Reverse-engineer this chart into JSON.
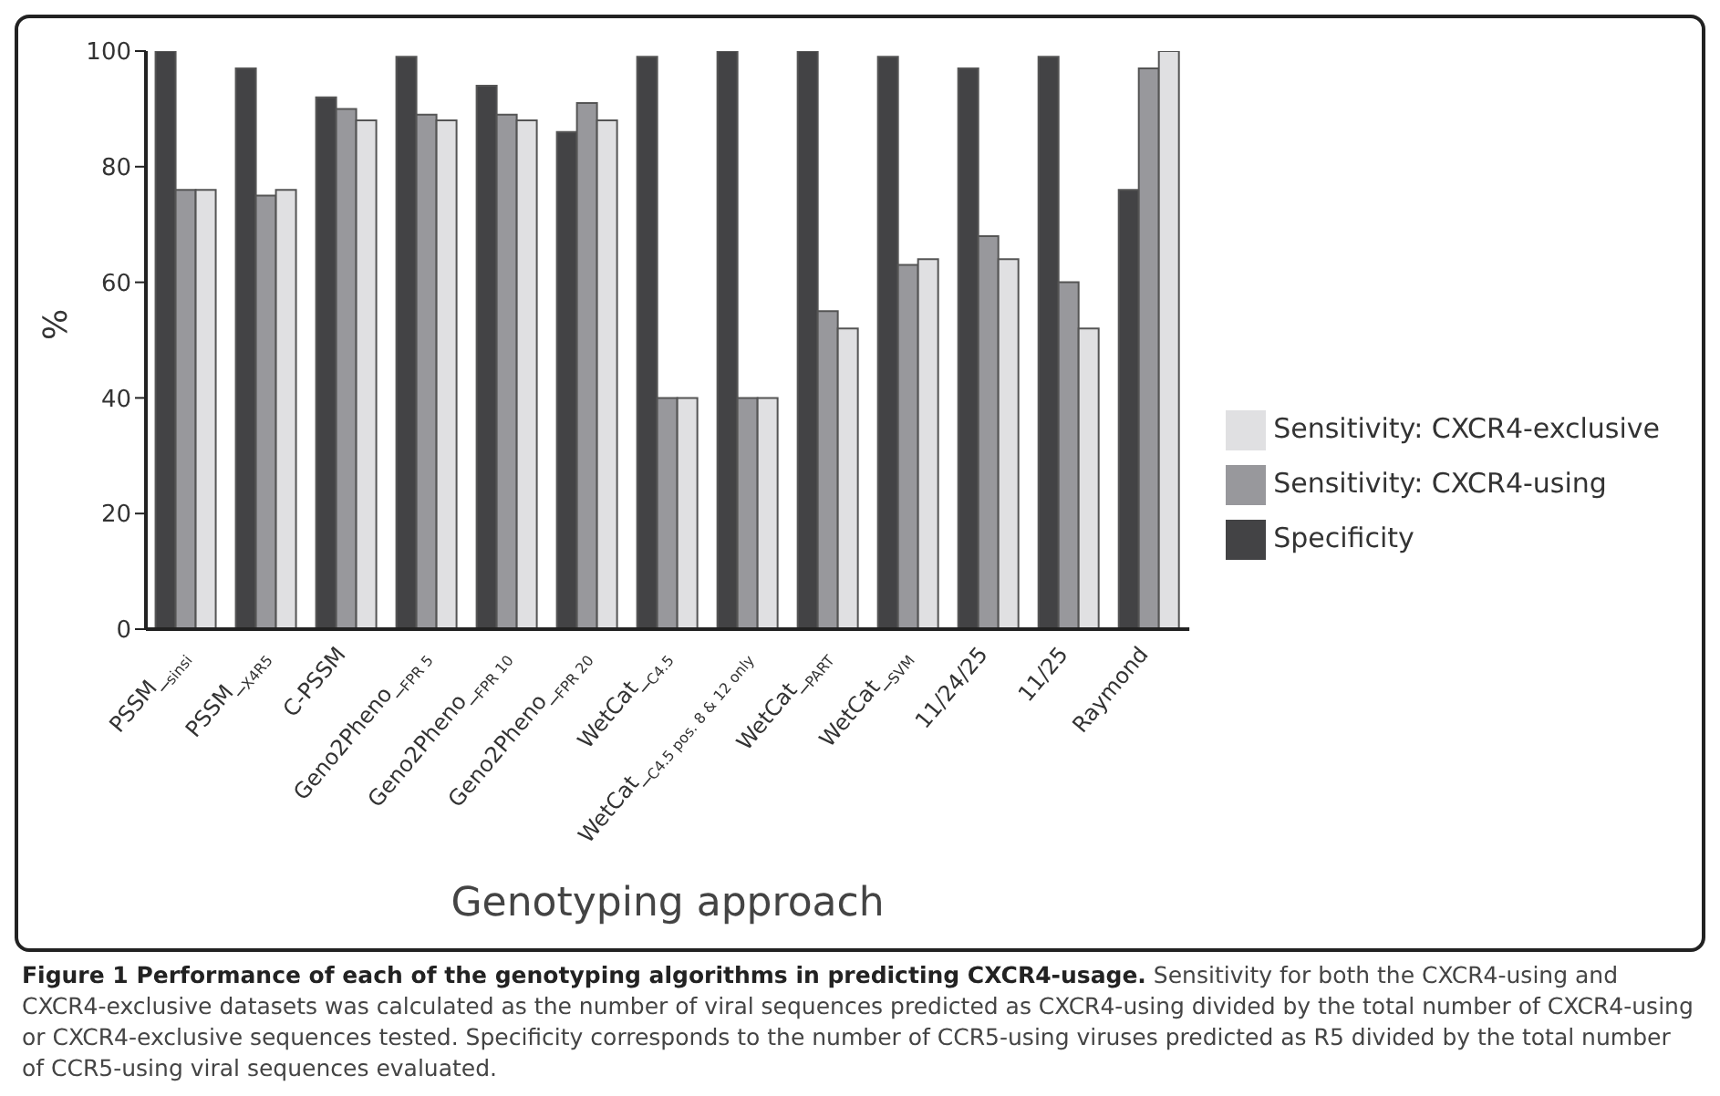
{
  "chart_data": {
    "type": "bar",
    "title": "Figure 1 Performance of each of the genotyping algorithms in predicting CXCR4-usage.",
    "annotations": [
      "Sensitivity for both the CXCR4-using and CXCR4-exclusive datasets was calculated as the number of viral sequences predicted as CXCR4-using divided by the total number of CXCR4-using or CXCR4-exclusive sequences tested. Specificity corresponds to the number of CCR5-using viruses predicted as R5 divided by the total number of CCR5-using viral sequences evaluated."
    ],
    "xlabel": "Genotyping approach",
    "ylabel": "%",
    "categories": [
      "PSSM_$_{sinsi}$",
      "PSSM_$_{X4R5}$",
      "C-PSSM",
      "Geno2Pheno_$_{FPR 5}$",
      "Geno2Pheno_$_{FPR 10}$",
      "Geno2Pheno_$_{FPR 20}$",
      "WetCat_$_{C4.5}$",
      "WetCat_$_{C4.5 pos. 8 & 12 only}$",
      "WetCat_$_{PART}$",
      "WetCat_$_{SVM}$",
      "11/24/25",
      "11/25",
      "Raymond"
    ],
    "series": [
      {
        "name": "Specificity",
        "color": "#434345",
        "values": [
          100,
          97,
          92,
          99,
          94,
          86,
          99,
          100,
          100,
          99,
          97,
          99,
          76
        ]
      },
      {
        "name": "Sensitivity: CXCR4-using",
        "color": "#98989c",
        "values": [
          76,
          75,
          90,
          89,
          89,
          91,
          40,
          40,
          55,
          63,
          68,
          60,
          97
        ]
      },
      {
        "name": "Sensitivity: CXCR4-exclusive",
        "color": "#e0e0e2",
        "values": [
          76,
          76,
          88,
          88,
          88,
          88,
          40,
          40,
          52,
          64,
          64,
          52,
          100
        ]
      }
    ],
    "ylim": [
      0,
      100
    ],
    "yticks": [
      0,
      20,
      40,
      60,
      80,
      100
    ],
    "legend": "right"
  }
}
